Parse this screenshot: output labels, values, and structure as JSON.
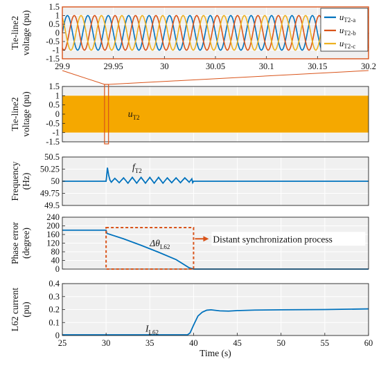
{
  "chart_data": [
    {
      "type": "line",
      "panel": 1,
      "ylabel": [
        "Tie-line2",
        "voltage (pu)"
      ],
      "xlim": [
        29.9,
        30.2
      ],
      "ylim": [
        -1.5,
        1.5
      ],
      "xticks": [
        29.9,
        29.95,
        30,
        30.05,
        30.1,
        30.15,
        30.2
      ],
      "xtick_labels": [
        "29.9",
        "29.95",
        "30",
        "30.05",
        "30.1",
        "30.15",
        "30.2"
      ],
      "yticks": [
        -1.5,
        -1,
        -0.5,
        0,
        0.5,
        1,
        1.5
      ],
      "ytick_labels": [
        "-1.5",
        "-1",
        "-0.5",
        "0",
        "0.5",
        "1",
        "1.5"
      ],
      "grid": true,
      "legend_position": "top-right",
      "series": [
        {
          "name": "u",
          "sub": "T2-a",
          "color": "#0072BD",
          "amplitude": 1.0,
          "frequency_hz": 50,
          "phase_deg": 0
        },
        {
          "name": "u",
          "sub": "T2-b",
          "color": "#D95319",
          "amplitude": 1.0,
          "frequency_hz": 50,
          "phase_deg": -120
        },
        {
          "name": "u",
          "sub": "T2-c",
          "color": "#EDB120",
          "amplitude": 1.0,
          "frequency_hz": 50,
          "phase_deg": 120
        }
      ]
    },
    {
      "type": "area",
      "panel": 2,
      "ylabel": [
        "Tie-line2",
        "voltage (pu)"
      ],
      "xlim": [
        25,
        60
      ],
      "ylim": [
        -1.5,
        1.5
      ],
      "yticks": [
        -1.5,
        -1,
        -0.5,
        0,
        0.5,
        1,
        1.5
      ],
      "ytick_labels": [
        "-1.5",
        "-1",
        "-0.5",
        "0",
        "0.5",
        "1",
        "1.5"
      ],
      "grid": true,
      "band": {
        "x": [
          25,
          60
        ],
        "ymin": -1,
        "ymax": 1,
        "color": "#F5A800"
      },
      "annotation": {
        "name": "u",
        "sub": "T2",
        "x": 32.5,
        "y": 0
      },
      "zoom_window": [
        29.9,
        30.2
      ]
    },
    {
      "type": "line",
      "panel": 3,
      "ylabel": [
        "Frequency",
        "(Hz)"
      ],
      "xlim": [
        25,
        60
      ],
      "ylim": [
        49.5,
        50.5
      ],
      "yticks": [
        49.5,
        49.75,
        50,
        50.25,
        50.5
      ],
      "ytick_labels": [
        "49.5",
        "49.75",
        "50",
        "50.25",
        "50.5"
      ],
      "grid": true,
      "color": "#0072BD",
      "annotation": {
        "name": "f",
        "sub": "T2",
        "x": 33,
        "y": 50.2
      },
      "points": [
        [
          25,
          50
        ],
        [
          30,
          50
        ],
        [
          30.05,
          50.08
        ],
        [
          30.15,
          50.28
        ],
        [
          30.3,
          50.12
        ],
        [
          30.45,
          50.02
        ],
        [
          30.6,
          49.98
        ],
        [
          31.0,
          50.06
        ],
        [
          31.5,
          49.97
        ],
        [
          32.0,
          50.07
        ],
        [
          32.5,
          49.96
        ],
        [
          33.0,
          50.08
        ],
        [
          33.5,
          49.96
        ],
        [
          34.0,
          50.08
        ],
        [
          34.5,
          49.96
        ],
        [
          35.0,
          50.08
        ],
        [
          35.5,
          49.96
        ],
        [
          36.0,
          50.08
        ],
        [
          36.5,
          49.96
        ],
        [
          37.0,
          50.07
        ],
        [
          37.5,
          49.97
        ],
        [
          38.0,
          50.07
        ],
        [
          38.5,
          49.97
        ],
        [
          39.0,
          50.07
        ],
        [
          39.5,
          49.98
        ],
        [
          39.8,
          50.05
        ],
        [
          39.9,
          49.97
        ],
        [
          40.0,
          50
        ],
        [
          60,
          50
        ]
      ]
    },
    {
      "type": "line",
      "panel": 4,
      "ylabel": [
        "Phase error",
        "(degree)"
      ],
      "xlim": [
        25,
        60
      ],
      "ylim": [
        0,
        240
      ],
      "yticks": [
        0,
        40,
        80,
        120,
        160,
        200,
        240
      ],
      "ytick_labels": [
        "0",
        "40",
        "80",
        "120",
        "160",
        "200",
        "240"
      ],
      "grid": true,
      "color": "#0072BD",
      "annotation": {
        "name": "Δθ",
        "sub": "L62",
        "x": 35,
        "y": 105
      },
      "callout": {
        "text": "Distant synchronization process",
        "box_x": [
          30,
          40
        ],
        "box_y": [
          0,
          192
        ],
        "color": "#D95319"
      },
      "points": [
        [
          25,
          180
        ],
        [
          30,
          180
        ],
        [
          30.1,
          165
        ],
        [
          32,
          140
        ],
        [
          34,
          110
        ],
        [
          36,
          78
        ],
        [
          38,
          44
        ],
        [
          39.5,
          6
        ],
        [
          40,
          0
        ],
        [
          60,
          0
        ]
      ]
    },
    {
      "type": "line",
      "panel": 5,
      "ylabel": [
        "L62 current",
        "(pu)"
      ],
      "xlabel": "Time (s)",
      "xlim": [
        25,
        60
      ],
      "ylim": [
        0,
        0.4
      ],
      "xticks": [
        25,
        30,
        35,
        40,
        45,
        50,
        55,
        60
      ],
      "xtick_labels": [
        "25",
        "30",
        "35",
        "40",
        "45",
        "50",
        "55",
        "60"
      ],
      "yticks": [
        0,
        0.1,
        0.2,
        0.3,
        0.4
      ],
      "ytick_labels": [
        "0",
        "0.1",
        "0.2",
        "0.3",
        "0.4"
      ],
      "grid": true,
      "color": "#0072BD",
      "annotation": {
        "name": "I",
        "sub": "L62",
        "x": 34.5,
        "y": 0.05
      },
      "points": [
        [
          25,
          0.005
        ],
        [
          39.3,
          0.005
        ],
        [
          39.6,
          0.02
        ],
        [
          40,
          0.08
        ],
        [
          40.5,
          0.15
        ],
        [
          41,
          0.18
        ],
        [
          41.5,
          0.195
        ],
        [
          42,
          0.198
        ],
        [
          43,
          0.19
        ],
        [
          44,
          0.188
        ],
        [
          45,
          0.192
        ],
        [
          47,
          0.196
        ],
        [
          50,
          0.198
        ],
        [
          55,
          0.2
        ],
        [
          60,
          0.205
        ]
      ]
    }
  ]
}
